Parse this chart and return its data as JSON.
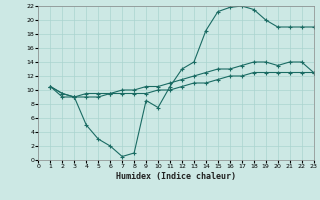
{
  "xlabel": "Humidex (Indice chaleur)",
  "bg_color": "#cce8e4",
  "grid_color": "#aad4cf",
  "line_color": "#1a6b63",
  "xlim": [
    0,
    23
  ],
  "ylim": [
    0,
    22
  ],
  "xticks": [
    0,
    1,
    2,
    3,
    4,
    5,
    6,
    7,
    8,
    9,
    10,
    11,
    12,
    13,
    14,
    15,
    16,
    17,
    18,
    19,
    20,
    21,
    22,
    23
  ],
  "yticks": [
    0,
    2,
    4,
    6,
    8,
    10,
    12,
    14,
    16,
    18,
    20,
    22
  ],
  "line1_x": [
    1,
    2,
    3,
    4,
    5,
    6,
    7,
    8,
    9,
    10,
    11,
    12,
    13,
    14,
    15,
    16,
    17,
    18,
    19,
    20,
    21,
    22,
    23
  ],
  "line1_y": [
    10.5,
    9.5,
    9.0,
    5.0,
    3.0,
    2.0,
    0.5,
    1.0,
    8.5,
    7.5,
    10.5,
    13.0,
    14.0,
    18.5,
    21.2,
    21.8,
    22.0,
    21.5,
    20.0,
    19.0,
    19.0,
    19.0,
    19.0
  ],
  "line2_x": [
    1,
    2,
    3,
    4,
    5,
    6,
    7,
    8,
    9,
    10,
    11,
    12,
    13,
    14,
    15,
    16,
    17,
    18,
    19,
    20,
    21,
    22,
    23
  ],
  "line2_y": [
    10.5,
    9.5,
    9.0,
    9.5,
    9.5,
    9.5,
    10.0,
    10.0,
    10.5,
    10.5,
    11.0,
    11.5,
    12.0,
    12.5,
    13.0,
    13.0,
    13.5,
    14.0,
    14.0,
    13.5,
    14.0,
    14.0,
    12.5
  ],
  "line3_x": [
    1,
    2,
    3,
    4,
    5,
    6,
    7,
    8,
    9,
    10,
    11,
    12,
    13,
    14,
    15,
    16,
    17,
    18,
    19,
    20,
    21,
    22,
    23
  ],
  "line3_y": [
    10.5,
    9.0,
    9.0,
    9.0,
    9.0,
    9.5,
    9.5,
    9.5,
    9.5,
    10.0,
    10.0,
    10.5,
    11.0,
    11.0,
    11.5,
    12.0,
    12.0,
    12.5,
    12.5,
    12.5,
    12.5,
    12.5,
    12.5
  ]
}
